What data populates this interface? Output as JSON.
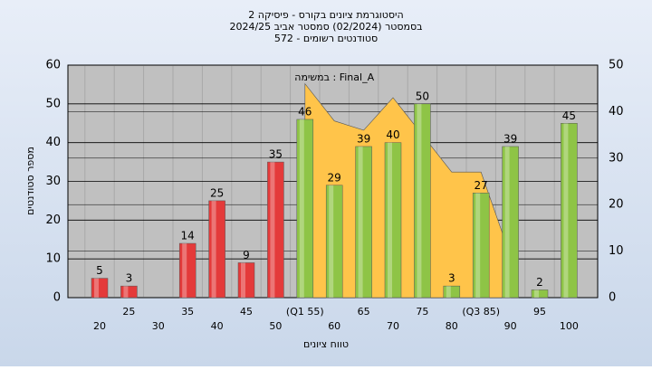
{
  "chart_data": {
    "type": "bar",
    "title": "היסטוגרמת ציונים בקורס - פיסיקה 2",
    "subtitle": [
      "בסמסטר (02/2024) סמסטר אביב 2024/25",
      "סטודנטים רשומים - 572"
    ],
    "xlabel": "טווח ציונים",
    "ylabel": "מספר סטודנטים",
    "categories": [
      "20",
      "25",
      "30",
      "35",
      "40",
      "45",
      "50",
      "(Q1 55)",
      "60",
      "65",
      "70",
      "75",
      "80",
      "(Q3 85)",
      "90",
      "95",
      "100"
    ],
    "values": [
      5,
      3,
      null,
      14,
      25,
      9,
      35,
      46,
      29,
      39,
      40,
      50,
      3,
      27,
      39,
      2,
      45
    ],
    "colors": [
      "#e43a3a",
      "#e43a3a",
      "#e43a3a",
      "#e43a3a",
      "#e43a3a",
      "#e43a3a",
      "#e43a3a",
      "#8ec446",
      "#8ec446",
      "#8ec446",
      "#8ec446",
      "#8ec446",
      "#8ec446",
      "#8ec446",
      "#8ec446",
      "#8ec446",
      "#8ec446"
    ],
    "area": {
      "name": "Final_A : במשימה",
      "color": "#ffc44a",
      "axis": "y2",
      "values": [
        null,
        null,
        null,
        null,
        null,
        null,
        null,
        46,
        38,
        36,
        43,
        35,
        27,
        27,
        9,
        null,
        null
      ]
    },
    "ylim": [
      0,
      60
    ],
    "yticks": [
      0,
      10,
      20,
      30,
      40,
      50,
      60
    ],
    "y2lim": [
      0,
      50
    ],
    "y2ticks": [
      0,
      10,
      20,
      30,
      40,
      50
    ],
    "grid": true
  }
}
